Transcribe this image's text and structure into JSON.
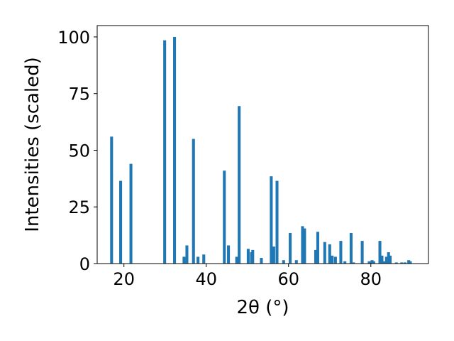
{
  "chart_data": {
    "type": "bar",
    "title": "",
    "xlabel": "2θ (°)",
    "ylabel": "Intensities (scaled)",
    "xlim": [
      13.5,
      94.0
    ],
    "ylim": [
      0,
      105
    ],
    "xticks": [
      20,
      40,
      60,
      80
    ],
    "yticks": [
      0,
      25,
      50,
      75,
      100
    ],
    "grid": false,
    "bar_color": "#1f77b4",
    "bar_width": 0.7,
    "series": [
      {
        "x": [
          17.0,
          19.2,
          21.7,
          29.9,
          32.3,
          34.6,
          35.3,
          36.9,
          38.0,
          39.4,
          44.4,
          45.4,
          47.4,
          48.0,
          50.2,
          51.0,
          51.3,
          53.4,
          55.8,
          56.4,
          57.2,
          58.8,
          60.4,
          61.9,
          63.4,
          63.9,
          66.6,
          67.1,
          68.8,
          70.0,
          70.6,
          71.4,
          72.7,
          73.7,
          75.2,
          75.8,
          77.9,
          79.6,
          80.3,
          80.7,
          82.2,
          82.7,
          83.4,
          83.8,
          84.3,
          84.7,
          86.2,
          87.5,
          88.3,
          89.2,
          89.6
        ],
        "values": [
          56,
          36.5,
          44,
          98.5,
          100,
          3,
          8,
          55,
          3,
          4,
          41,
          8,
          3,
          69.5,
          6.5,
          5,
          6,
          2.5,
          38.5,
          7.5,
          36.5,
          1.5,
          13.5,
          1.5,
          16.5,
          15.5,
          6,
          14,
          9.5,
          8.5,
          3.5,
          3,
          10,
          1,
          13.5,
          0.5,
          10,
          1,
          1.5,
          1,
          10,
          3.5,
          1,
          3,
          5,
          3.5,
          0.5,
          0.5,
          0.5,
          1.5,
          1
        ]
      }
    ]
  }
}
